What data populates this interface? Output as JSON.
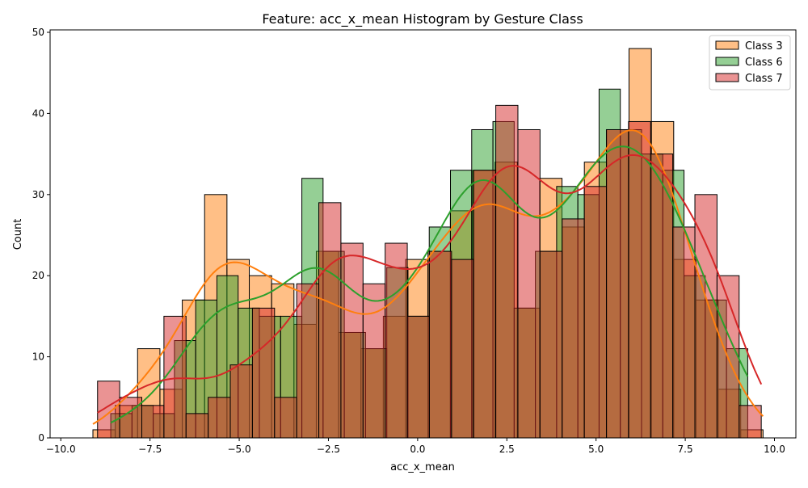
{
  "chart_data": {
    "type": "bar",
    "subtype": "overlapping-histogram-with-kde",
    "title": "Feature: acc_x_mean Histogram by Gesture Class",
    "xlabel": "acc_x_mean",
    "ylabel": "Count",
    "xlim": [
      -10.3,
      10.6
    ],
    "ylim": [
      0,
      50.3
    ],
    "xticks": [
      -10.0,
      -7.5,
      -5.0,
      -2.5,
      0.0,
      2.5,
      5.0,
      7.5,
      10.0
    ],
    "xtick_labels": [
      "−10.0",
      "−7.5",
      "−5.0",
      "−2.5",
      "0.0",
      "2.5",
      "5.0",
      "7.5",
      "10.0"
    ],
    "yticks": [
      0,
      10,
      20,
      30,
      40,
      50
    ],
    "ytick_labels": [
      "0",
      "10",
      "20",
      "30",
      "40",
      "50"
    ],
    "grid": false,
    "legend_position": "top-right",
    "series": [
      {
        "name": "Class 3",
        "color": "#ff7f0e",
        "bin_start": -9.1,
        "bin_width": 0.626,
        "values": [
          1,
          4,
          11,
          6,
          17,
          30,
          22,
          20,
          19,
          14,
          23,
          13,
          11,
          15,
          22,
          23,
          28,
          33,
          34,
          16,
          32,
          26,
          34,
          38,
          48,
          39,
          22,
          17,
          6,
          1
        ]
      },
      {
        "name": "Class 6",
        "color": "#2ca02c",
        "bin_start": -8.6,
        "bin_width": 0.595,
        "values": [
          3,
          4,
          3,
          12,
          17,
          20,
          16,
          15,
          15,
          32,
          23,
          13,
          11,
          21,
          15,
          26,
          33,
          38,
          39,
          16,
          23,
          31,
          30,
          43,
          38,
          35,
          33,
          20,
          17,
          11
        ]
      },
      {
        "name": "Class 7",
        "color": "#d62728",
        "bin_start": -8.97,
        "bin_width": 0.62,
        "values": [
          7,
          5,
          4,
          15,
          3,
          5,
          9,
          16,
          5,
          19,
          29,
          24,
          19,
          24,
          15,
          23,
          22,
          33,
          41,
          38,
          23,
          27,
          31,
          38,
          39,
          35,
          26,
          30,
          20,
          4
        ]
      }
    ]
  }
}
